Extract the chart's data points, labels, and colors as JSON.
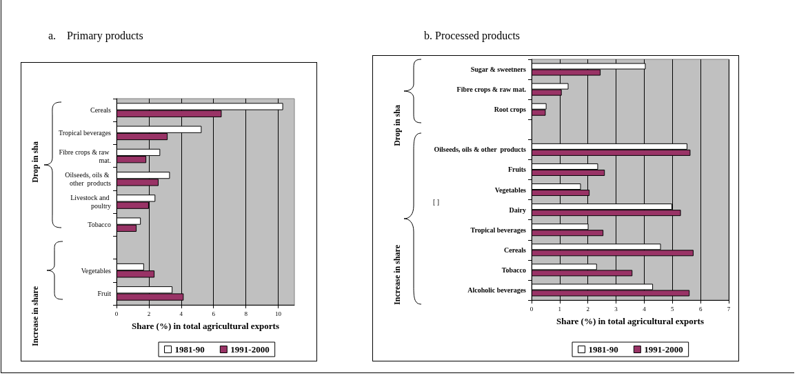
{
  "chart_data": [
    {
      "type": "bar",
      "title": "a.    Primary products",
      "orientation": "horizontal",
      "xlabel": "Share (%) in total agricultural exports",
      "categories": [
        "Cereals",
        "Tropical beverages",
        "Fibre crops & raw mat.",
        "Oilseeds, oils & other  products",
        "Livestock and poultry",
        "Tobacco",
        null,
        "Vegetables",
        "Fruit"
      ],
      "series": [
        {
          "name": "1981-90",
          "color": "#ffffff",
          "values": [
            10.3,
            5.26,
            2.7,
            3.3,
            2.4,
            1.5,
            null,
            1.7,
            3.46
          ]
        },
        {
          "name": "1991-2000",
          "color": "#993366",
          "values": [
            6.5,
            3.16,
            1.84,
            2.6,
            2.0,
            1.24,
            null,
            2.35,
            4.15
          ]
        }
      ],
      "xlim": [
        0,
        11
      ],
      "xticks": [
        0,
        2,
        4,
        6,
        8,
        10
      ],
      "grid": "x",
      "legend": "bottom",
      "annotations": [
        "Drop in sha",
        "Increase in share"
      ]
    },
    {
      "type": "bar",
      "title": "b. Processed products",
      "orientation": "horizontal",
      "xlabel": "Share (%) in total agricultural exports",
      "categories": [
        "Sugar & sweetners",
        "Fibre crops & raw mat.",
        "Root crops",
        null,
        "Oilseeds, oils & other  products",
        "Fruits",
        "Vegetables",
        "Dairy",
        "Tropical beverages",
        "Cereals",
        "Tobacco",
        "Alcoholic beverages"
      ],
      "series": [
        {
          "name": "1981-90",
          "color": "#ffffff",
          "values": [
            4.05,
            1.31,
            0.53,
            null,
            5.53,
            2.36,
            1.75,
            4.99,
            2.02,
            4.59,
            2.32,
            4.31
          ]
        },
        {
          "name": "1991-2000",
          "color": "#993366",
          "values": [
            2.45,
            1.07,
            0.5,
            null,
            5.64,
            2.6,
            2.06,
            5.3,
            2.55,
            5.75,
            3.58,
            5.61
          ]
        }
      ],
      "xlim": [
        0,
        7
      ],
      "xticks": [
        0,
        1,
        2,
        3,
        4,
        5,
        6,
        7
      ],
      "grid": "x",
      "legend": "bottom",
      "annotations": [
        "Drop in sha",
        "Increase in share",
        "[ ]"
      ]
    }
  ]
}
